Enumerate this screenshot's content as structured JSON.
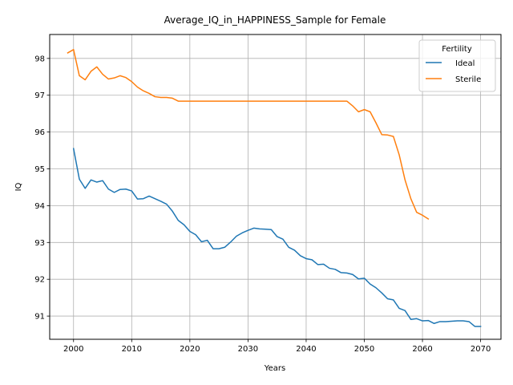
{
  "chart_data": {
    "type": "line",
    "title": "Average_IQ_in_HAPPINESS_Sample for Female",
    "xlabel": "Years",
    "ylabel": "IQ",
    "xlim": [
      1995.9,
      2073.5
    ],
    "ylim": [
      90.37,
      98.65
    ],
    "xticks": [
      2000,
      2010,
      2020,
      2030,
      2040,
      2050,
      2060,
      2070
    ],
    "yticks": [
      91,
      92,
      93,
      94,
      95,
      96,
      97,
      98
    ],
    "grid": true,
    "legend": {
      "title": "Fertility",
      "position": "top-right"
    },
    "series": [
      {
        "name": "Ideal",
        "color": "#1f77b4",
        "x": [
          2000,
          2001,
          2002,
          2003,
          2004,
          2005,
          2006,
          2007,
          2008,
          2009,
          2010,
          2011,
          2012,
          2013,
          2014,
          2015,
          2016,
          2017,
          2018,
          2019,
          2020,
          2021,
          2022,
          2023,
          2024,
          2025,
          2026,
          2027,
          2028,
          2029,
          2030,
          2031,
          2032,
          2033,
          2034,
          2035,
          2036,
          2037,
          2038,
          2039,
          2040,
          2041,
          2042,
          2043,
          2044,
          2045,
          2046,
          2047,
          2048,
          2049,
          2050,
          2051,
          2052,
          2053,
          2054,
          2055,
          2056,
          2057,
          2058,
          2059,
          2060,
          2061,
          2062,
          2063,
          2064,
          2065,
          2066,
          2067,
          2068,
          2069,
          2070
        ],
        "y": [
          95.55,
          94.72,
          94.47,
          94.7,
          94.64,
          94.68,
          94.45,
          94.36,
          94.44,
          94.45,
          94.4,
          94.18,
          94.19,
          94.26,
          94.19,
          94.12,
          94.04,
          93.85,
          93.6,
          93.48,
          93.3,
          93.21,
          93.02,
          93.06,
          92.83,
          92.83,
          92.87,
          93.01,
          93.17,
          93.26,
          93.33,
          93.39,
          93.37,
          93.36,
          93.35,
          93.16,
          93.09,
          92.87,
          92.79,
          92.64,
          92.56,
          92.53,
          92.4,
          92.41,
          92.3,
          92.27,
          92.18,
          92.17,
          92.13,
          92.01,
          92.03,
          91.87,
          91.77,
          91.63,
          91.47,
          91.44,
          91.21,
          91.15,
          90.91,
          90.93,
          90.87,
          90.88,
          90.8,
          90.85,
          90.85,
          90.86,
          90.87,
          90.87,
          90.85,
          90.72,
          90.72
        ]
      },
      {
        "name": "Sterile",
        "color": "#ff7f0e",
        "x": [
          1999,
          2000,
          2001,
          2002,
          2003,
          2004,
          2005,
          2006,
          2007,
          2008,
          2009,
          2010,
          2011,
          2012,
          2013,
          2014,
          2015,
          2016,
          2017,
          2018,
          2019,
          2020,
          2021,
          2022,
          2023,
          2024,
          2025,
          2026,
          2027,
          2028,
          2029,
          2030,
          2031,
          2032,
          2033,
          2034,
          2035,
          2036,
          2037,
          2038,
          2039,
          2040,
          2041,
          2042,
          2043,
          2044,
          2045,
          2046,
          2047,
          2048,
          2049,
          2050,
          2051,
          2052,
          2053,
          2054,
          2055,
          2056,
          2057,
          2058,
          2059,
          2060,
          2061
        ],
        "y": [
          98.15,
          98.24,
          97.53,
          97.42,
          97.65,
          97.77,
          97.57,
          97.44,
          97.47,
          97.53,
          97.48,
          97.37,
          97.22,
          97.12,
          97.05,
          96.96,
          96.94,
          96.94,
          96.92,
          96.84,
          96.84,
          96.84,
          96.84,
          96.84,
          96.84,
          96.84,
          96.84,
          96.84,
          96.84,
          96.84,
          96.84,
          96.84,
          96.84,
          96.84,
          96.84,
          96.84,
          96.84,
          96.84,
          96.84,
          96.84,
          96.84,
          96.84,
          96.84,
          96.84,
          96.84,
          96.84,
          96.84,
          96.84,
          96.84,
          96.71,
          96.55,
          96.61,
          96.55,
          96.25,
          95.93,
          95.92,
          95.88,
          95.38,
          94.7,
          94.19,
          93.82,
          93.74,
          93.64
        ]
      }
    ]
  }
}
